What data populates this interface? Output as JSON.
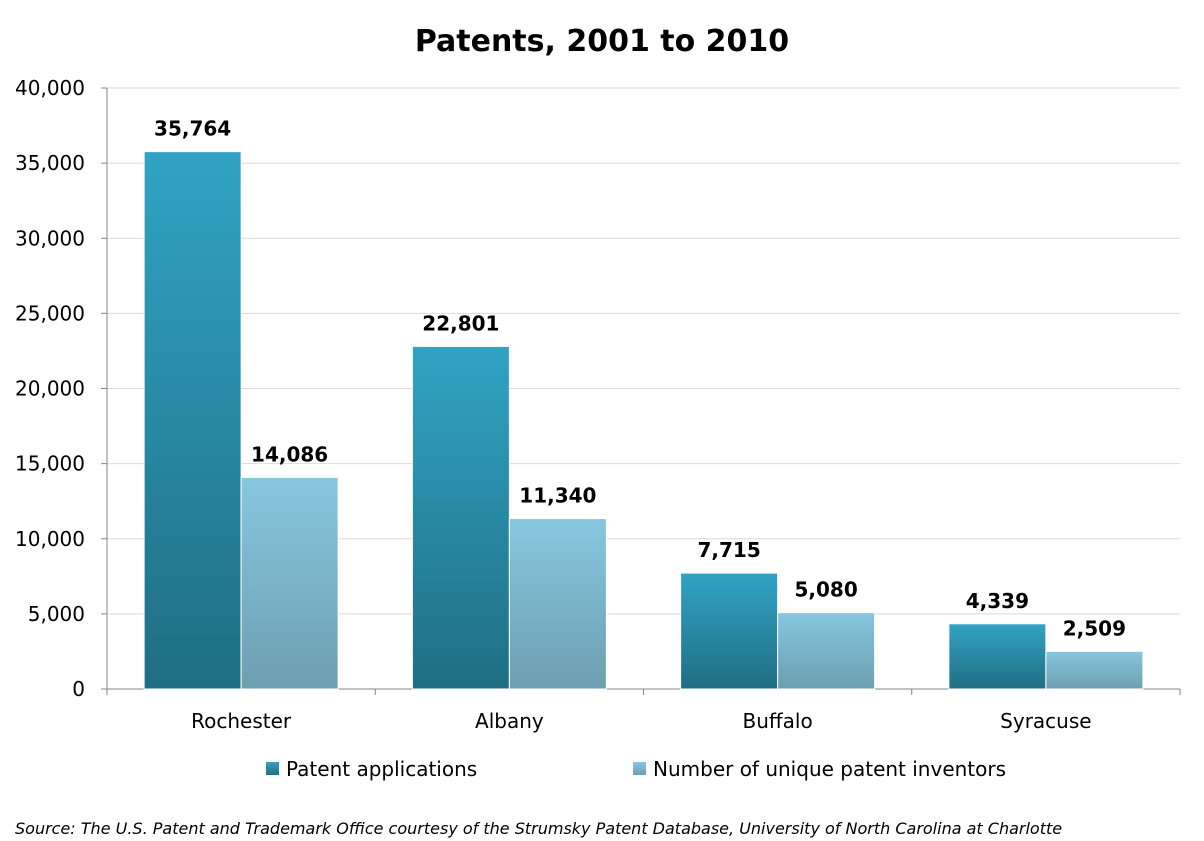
{
  "chart_data": {
    "type": "bar",
    "title": "Patents, 2001 to 2010",
    "categories": [
      "Rochester",
      "Albany",
      "Buffalo",
      "Syracuse"
    ],
    "series": [
      {
        "name": "Patent applications",
        "values": [
          35764,
          22801,
          7715,
          4339
        ],
        "data_labels": [
          "35,764",
          "22,801",
          "7,715",
          "4,339"
        ]
      },
      {
        "name": "Number of unique patent inventors",
        "values": [
          14086,
          11340,
          5080,
          2509
        ],
        "data_labels": [
          "14,086",
          "11,340",
          "5,080",
          "2,509"
        ]
      }
    ],
    "ylim": [
      0,
      40000
    ],
    "yticks": [
      0,
      5000,
      10000,
      15000,
      20000,
      25000,
      30000,
      35000,
      40000
    ],
    "ytick_labels": [
      "0",
      "5,000",
      "10,000",
      "15,000",
      "20,000",
      "25,000",
      "30,000",
      "35,000",
      "40,000"
    ],
    "grid": true,
    "legend_position": "bottom",
    "colors": {
      "series_0_top": "#31a3c4",
      "series_0_bottom": "#1f6e83",
      "series_1_top": "#86c7df",
      "series_1_bottom": "#6d9fb0",
      "grid": "#d9d9d9",
      "axis": "#868686"
    },
    "source": "Source: The U.S. Patent and Trademark Office courtesy of the Strumsky Patent Database, University of North Carolina at Charlotte"
  }
}
